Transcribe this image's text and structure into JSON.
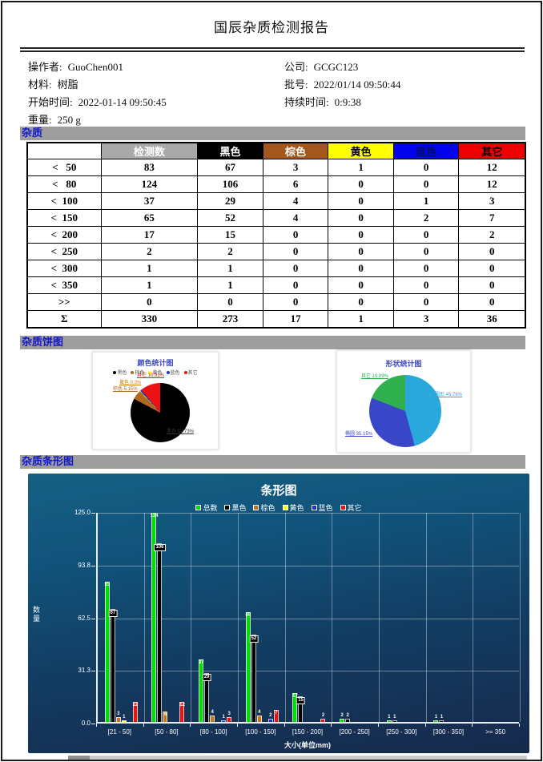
{
  "report": {
    "title": "国辰杂质检测报告"
  },
  "info": {
    "left": [
      [
        "操作者:",
        "GuoChen001"
      ],
      [
        "材料:",
        "树脂"
      ],
      [
        "开始时间:",
        "2022-01-14 09:50:45"
      ],
      [
        "重量:",
        "250 g"
      ]
    ],
    "right": [
      [
        "公司:",
        "GCGC123"
      ],
      [
        "批号:",
        "2022/01/14 09:50:44"
      ],
      [
        "持续时间:",
        "0:9:38"
      ]
    ]
  },
  "sections": {
    "impurity": "杂质",
    "pie": "杂质饼图",
    "bar": "杂质条形图"
  },
  "table": {
    "headers": [
      {
        "label": "",
        "bg": "#ffffff",
        "fg": "#000000"
      },
      {
        "label": "检测数",
        "bg": "#a9a9a9",
        "fg": "#ffffff"
      },
      {
        "label": "黑色",
        "bg": "#000000",
        "fg": "#ffffff"
      },
      {
        "label": "棕色",
        "bg": "#a3571c",
        "fg": "#ffffff"
      },
      {
        "label": "黄色",
        "bg": "#ffff00",
        "fg": "#000000"
      },
      {
        "label": "蓝色",
        "bg": "#0202ee",
        "fg": "#001060"
      },
      {
        "label": "其它",
        "bg": "#ee0000",
        "fg": "#000000"
      }
    ],
    "rows": [
      {
        "label": "<   50",
        "values": [
          83,
          67,
          3,
          1,
          0,
          12
        ]
      },
      {
        "label": "<   80",
        "values": [
          124,
          106,
          6,
          0,
          0,
          12
        ]
      },
      {
        "label": "<  100",
        "values": [
          37,
          29,
          4,
          0,
          1,
          3
        ]
      },
      {
        "label": "<  150",
        "values": [
          65,
          52,
          4,
          0,
          2,
          7
        ]
      },
      {
        "label": "<  200",
        "values": [
          17,
          15,
          0,
          0,
          0,
          2
        ]
      },
      {
        "label": "<  250",
        "values": [
          2,
          2,
          0,
          0,
          0,
          0
        ]
      },
      {
        "label": "<  300",
        "values": [
          1,
          1,
          0,
          0,
          0,
          0
        ]
      },
      {
        "label": "<  350",
        "values": [
          1,
          1,
          0,
          0,
          0,
          0
        ]
      },
      {
        "label": ">>",
        "values": [
          0,
          0,
          0,
          0,
          0,
          0
        ]
      },
      {
        "label": "Σ",
        "values": [
          330,
          273,
          17,
          1,
          3,
          36
        ]
      }
    ]
  },
  "chart_data": [
    {
      "type": "pie",
      "title": "颜色统计图",
      "legend": [
        "黑色",
        "棕色",
        "黄色",
        "蓝色",
        "其它"
      ],
      "labels": [
        "黑色",
        "棕色",
        "黄色",
        "蓝色",
        "其它"
      ],
      "values": [
        273,
        17,
        1,
        3,
        36
      ],
      "percents": [
        82.73,
        5.15,
        0.3,
        0.91,
        10.91
      ],
      "colors": [
        "#000000",
        "#b06820",
        "#ffff00",
        "#2233cc",
        "#ee1111"
      ],
      "callouts": [
        {
          "text": "其它 10.91%",
          "color": "#ee1111"
        },
        {
          "text": "黄色 0.3%",
          "color": "#d08000"
        },
        {
          "text": "棕色 5.15%",
          "color": "#b06820"
        },
        {
          "text": "黑色 82.73%",
          "color": "#333333"
        }
      ]
    },
    {
      "type": "pie",
      "title": "形状统计图",
      "labels": [
        "圆形",
        "椭圆",
        "其它"
      ],
      "values": [
        45.76,
        35.15,
        19.09
      ],
      "colors": [
        "#2aa8dc",
        "#3a46c8",
        "#2fb14f"
      ],
      "callouts": [
        {
          "text": "圆形 45.76%",
          "color": "#2aa8dc"
        },
        {
          "text": "椭圆 35.15%",
          "color": "#3a46c8"
        },
        {
          "text": "其它 19.09%",
          "color": "#2fb14f"
        }
      ]
    },
    {
      "type": "bar",
      "title": "条形图",
      "xlabel": "大小(单位mm)",
      "ylabel": "数量",
      "ylim": [
        0,
        125
      ],
      "yticks": [
        "125.0",
        "93.8",
        "62.5",
        "31.3",
        "0.0"
      ],
      "categories": [
        "[21 - 50]",
        "[50 - 80]",
        "[80 - 100]",
        "[100 - 150]",
        "[150 - 200]",
        "[200 - 250]",
        "[250 - 300]",
        "[300 - 350]",
        ">= 350"
      ],
      "series": [
        {
          "name": "总数",
          "color": "#00dd00",
          "values": [
            83,
            124,
            37,
            65,
            17,
            2,
            1,
            1,
            0
          ]
        },
        {
          "name": "黑色",
          "color": "#000000",
          "values": [
            67,
            106,
            29,
            52,
            15,
            2,
            1,
            1,
            0
          ]
        },
        {
          "name": "棕色",
          "color": "#c07820",
          "values": [
            3,
            6,
            4,
            4,
            0,
            0,
            0,
            0,
            0
          ]
        },
        {
          "name": "黄色",
          "color": "#ffff00",
          "values": [
            1,
            0,
            0,
            0,
            0,
            0,
            0,
            0,
            0
          ]
        },
        {
          "name": "蓝色",
          "color": "#2233cc",
          "values": [
            0,
            0,
            1,
            2,
            0,
            0,
            0,
            0,
            0
          ]
        },
        {
          "name": "其它",
          "color": "#ee1111",
          "values": [
            12,
            12,
            3,
            7,
            2,
            0,
            0,
            0,
            0
          ]
        }
      ],
      "legend_position": "top",
      "grid": true
    }
  ]
}
